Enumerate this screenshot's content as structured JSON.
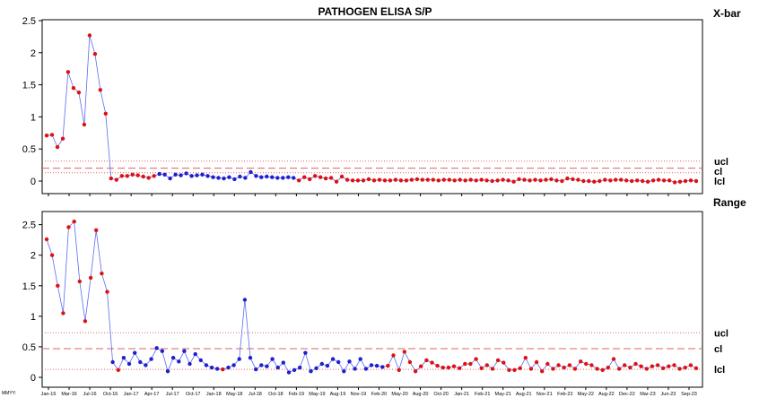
{
  "chart_data": [
    {
      "type": "line",
      "title": "PATHOGEN ELISA S/P",
      "chart_label": "X-bar",
      "ylim": [
        0,
        2.5
      ],
      "yticks": [
        "0",
        "0.5",
        "1",
        "1.5",
        "2",
        "2.5"
      ],
      "limit_labels": {
        "ucl": "ucl",
        "cl": "cl",
        "lcl": "lcl"
      },
      "limits": {
        "ucl": 0.31,
        "cl": 0.2,
        "lcl": 0.13
      },
      "series": [
        {
          "values": [
            0.71,
            0.72,
            0.53,
            0.66,
            1.7,
            1.45,
            1.38,
            0.88,
            2.27,
            1.98,
            1.42,
            1.05,
            0.04,
            0.02,
            0.08,
            0.08,
            0.1,
            0.09,
            0.07,
            0.05,
            0.08,
            0.11,
            0.1,
            0.04,
            0.1,
            0.09,
            0.12,
            0.08,
            0.09,
            0.1,
            0.08,
            0.06,
            0.05,
            0.04,
            0.06,
            0.03,
            0.07,
            0.05,
            0.14,
            0.08,
            0.06,
            0.07,
            0.06,
            0.05,
            0.05,
            0.06,
            0.05,
            0.01,
            0.06,
            0.03,
            0.08,
            0.06,
            0.04,
            0.05,
            -0.01,
            0.07,
            0.02,
            0.01,
            0.01,
            0.01,
            0.03,
            0.01,
            0.02,
            0.01,
            0.01,
            0.02,
            0.01,
            0.01,
            0.02,
            0.03,
            0.02,
            0.02,
            0.02,
            0.01,
            0.02,
            0.02,
            0.01,
            0.02,
            0.01,
            0.02,
            0.01,
            0.02,
            0.01,
            0.0,
            0.01,
            0.02,
            0.01,
            -0.01,
            0.03,
            0.02,
            0.01,
            0.02,
            0.01,
            0.02,
            0.03,
            0.01,
            0.0,
            0.04,
            0.03,
            0.02,
            0.0,
            0.0,
            -0.01,
            0.0,
            0.02,
            0.01,
            0.02,
            0.02,
            0.01,
            0.0,
            0.01,
            0.0,
            -0.01,
            0.01,
            0.02,
            0.01,
            0.01,
            -0.02,
            -0.01,
            0.0,
            0.01,
            0.0
          ],
          "in_control": [
            false,
            false,
            false,
            false,
            false,
            false,
            false,
            false,
            false,
            false,
            false,
            false,
            false,
            false,
            false,
            false,
            false,
            false,
            false,
            false,
            false,
            true,
            true,
            true,
            true,
            true,
            true,
            true,
            true,
            true,
            true,
            true,
            true,
            true,
            true,
            true,
            true,
            true,
            true,
            true,
            true,
            true,
            true,
            true,
            true,
            true,
            true,
            false,
            false,
            false,
            false,
            false,
            false,
            false,
            false,
            false,
            false,
            false,
            false,
            false,
            false,
            false,
            false,
            false,
            false,
            false,
            false,
            false,
            false,
            false,
            false,
            false,
            false,
            false,
            false,
            false,
            false,
            false,
            false,
            false,
            false,
            false,
            false,
            false,
            false,
            false,
            false,
            false,
            false,
            false,
            false,
            false,
            false,
            false,
            false,
            false,
            false,
            false,
            false,
            false,
            false,
            false,
            false,
            false,
            false,
            false,
            false,
            false,
            false,
            false,
            false,
            false,
            false,
            false,
            false,
            false,
            false,
            false,
            false,
            false,
            false,
            false
          ]
        }
      ]
    },
    {
      "type": "line",
      "chart_label": "Range",
      "ylim": [
        0,
        2.7
      ],
      "yticks": [
        "0",
        "0.5",
        "1",
        "1.5",
        "2",
        "2.5"
      ],
      "limit_labels": {
        "ucl": "ucl",
        "cl": "cl",
        "lcl": "lcl"
      },
      "limits": {
        "ucl": 0.73,
        "cl": 0.47,
        "lcl": 0.13
      },
      "series": [
        {
          "values": [
            2.26,
            2.0,
            1.5,
            1.05,
            2.46,
            2.55,
            1.57,
            0.92,
            1.63,
            2.41,
            1.7,
            1.4,
            0.25,
            0.12,
            0.32,
            0.22,
            0.4,
            0.25,
            0.2,
            0.3,
            0.48,
            0.43,
            0.1,
            0.32,
            0.26,
            0.43,
            0.22,
            0.38,
            0.28,
            0.2,
            0.16,
            0.14,
            0.13,
            0.16,
            0.2,
            0.3,
            1.27,
            0.32,
            0.13,
            0.2,
            0.18,
            0.3,
            0.16,
            0.24,
            0.08,
            0.12,
            0.16,
            0.4,
            0.1,
            0.15,
            0.22,
            0.19,
            0.3,
            0.25,
            0.1,
            0.26,
            0.14,
            0.3,
            0.14,
            0.2,
            0.19,
            0.17,
            0.19,
            0.36,
            0.12,
            0.42,
            0.25,
            0.1,
            0.18,
            0.28,
            0.24,
            0.19,
            0.16,
            0.16,
            0.18,
            0.15,
            0.22,
            0.22,
            0.3,
            0.15,
            0.2,
            0.14,
            0.28,
            0.24,
            0.12,
            0.12,
            0.15,
            0.32,
            0.14,
            0.25,
            0.1,
            0.22,
            0.14,
            0.2,
            0.16,
            0.2,
            0.14,
            0.26,
            0.22,
            0.2,
            0.14,
            0.12,
            0.16,
            0.3,
            0.14,
            0.2,
            0.16,
            0.22,
            0.18,
            0.14,
            0.18,
            0.2,
            0.15,
            0.18,
            0.2,
            0.14,
            0.16,
            0.2,
            0.15
          ],
          "in_control": [
            false,
            false,
            false,
            false,
            false,
            false,
            false,
            false,
            false,
            false,
            false,
            false,
            true,
            false,
            true,
            true,
            true,
            true,
            true,
            true,
            true,
            true,
            true,
            true,
            true,
            true,
            true,
            true,
            true,
            true,
            true,
            true,
            false,
            true,
            true,
            true,
            true,
            true,
            true,
            true,
            true,
            true,
            true,
            true,
            true,
            true,
            true,
            true,
            true,
            true,
            true,
            true,
            true,
            true,
            true,
            true,
            true,
            true,
            true,
            true,
            true,
            true,
            false,
            false,
            false,
            false,
            false,
            false,
            false,
            false,
            false,
            false,
            false,
            false,
            false,
            false,
            false,
            false,
            false,
            false,
            false,
            false,
            false,
            false,
            false,
            false,
            false,
            false,
            false,
            false,
            false,
            false,
            false,
            false,
            false,
            false,
            false,
            false,
            false,
            false,
            false,
            false,
            false,
            false,
            false,
            false,
            false,
            false,
            false,
            false,
            false,
            false,
            false,
            false,
            false,
            false,
            false,
            false,
            false,
            false,
            false
          ]
        }
      ]
    }
  ],
  "x_axis": {
    "prefix": "MMYY:",
    "ticks": [
      "Jan-16",
      "Mar-16",
      "Jul-16",
      "Oct-16",
      "Jan-17",
      "Apr-17",
      "Jul-17",
      "Oct-17",
      "Jan-18",
      "May-18",
      "Jul-18",
      "Oct-18",
      "Feb-19",
      "May-19",
      "Aug-19",
      "Nov-19",
      "Feb-20",
      "May-20",
      "Aug-20",
      "Oct-20",
      "Jan-21",
      "Feb-21",
      "May-21",
      "Aug-21",
      "Nov-21",
      "Feb-22",
      "May-22",
      "Aug-22",
      "Dec-22",
      "Mar-23",
      "Jun-23",
      "Sep-23"
    ]
  },
  "colors": {
    "in_control": "#1f1fd0",
    "out_of_control": "#e01010",
    "line": "#5a6cf0",
    "limit": "#e06060",
    "text": "#000000"
  }
}
